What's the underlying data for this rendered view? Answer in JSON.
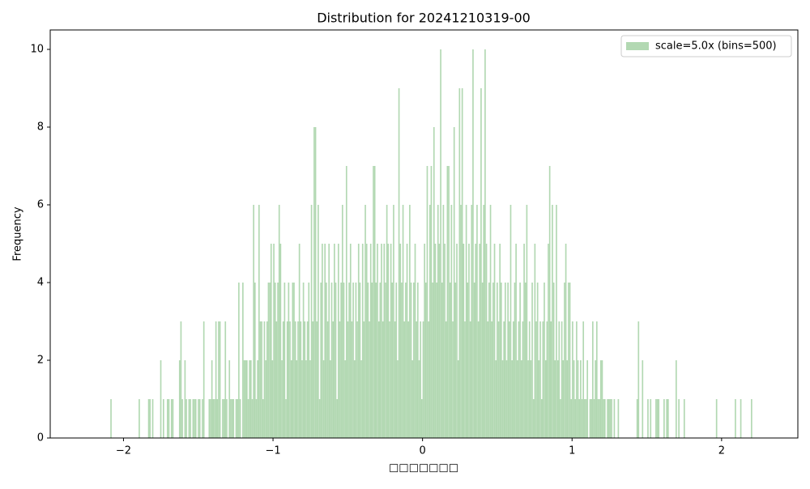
{
  "chart_data": {
    "type": "histogram",
    "title": "Distribution for 20241210319-00",
    "x_label": "□□□□□□□",
    "y_label": "Frequency",
    "legend_position": "upper right",
    "series": [
      {
        "name": "scale=5.0x (bins=500)",
        "color": "#b2d8b2",
        "bins": [
          -2.25,
          -2.241,
          -2.232,
          -2.223,
          -2.214,
          -2.205,
          -2.196,
          -2.187,
          -2.178,
          -2.169,
          -2.16,
          -2.151,
          -2.142,
          -2.133,
          -2.124,
          -2.115,
          -2.106,
          -2.097,
          -2.088,
          -2.079,
          -2.07,
          -2.061,
          -2.052,
          -2.043,
          -2.034,
          -2.025,
          -2.016,
          -2.007,
          -1.998,
          -1.989,
          -1.98,
          -1.971,
          -1.962,
          -1.953,
          -1.944,
          -1.935,
          -1.926,
          -1.917,
          -1.908,
          -1.899,
          -1.89,
          -1.881,
          -1.872,
          -1.863,
          -1.854,
          -1.845,
          -1.836,
          -1.827,
          -1.818,
          -1.809,
          -1.8,
          -1.791,
          -1.782,
          -1.773,
          -1.764,
          -1.755,
          -1.746,
          -1.737,
          -1.728,
          -1.719,
          -1.71,
          -1.701,
          -1.692,
          -1.683,
          -1.674,
          -1.665,
          -1.656,
          -1.647,
          -1.638,
          -1.629,
          -1.62,
          -1.611,
          -1.602,
          -1.593,
          -1.584,
          -1.575,
          -1.566,
          -1.557,
          -1.548,
          -1.539,
          -1.53,
          -1.521,
          -1.512,
          -1.503,
          -1.494,
          -1.485,
          -1.476,
          -1.467,
          -1.458,
          -1.449,
          -1.44,
          -1.431,
          -1.422,
          -1.413,
          -1.404,
          -1.395,
          -1.386,
          -1.377,
          -1.368,
          -1.359,
          -1.35,
          -1.341,
          -1.332,
          -1.323,
          -1.314,
          -1.305,
          -1.296,
          -1.287,
          -1.278,
          -1.269,
          -1.26,
          -1.251,
          -1.242,
          -1.233,
          -1.224,
          -1.215,
          -1.206,
          -1.197,
          -1.188,
          -1.179,
          -1.17,
          -1.161,
          -1.152,
          -1.143,
          -1.134,
          -1.125,
          -1.116,
          -1.107,
          -1.098,
          -1.089,
          -1.08,
          -1.071,
          -1.062,
          -1.053,
          -1.044,
          -1.035,
          -1.026,
          -1.017,
          -1.008,
          -0.999,
          -0.99,
          -0.981,
          -0.972,
          -0.963,
          -0.954,
          -0.945,
          -0.936,
          -0.927,
          -0.918,
          -0.909,
          -0.9,
          -0.891,
          -0.882,
          -0.873,
          -0.864,
          -0.855,
          -0.846,
          -0.837,
          -0.828,
          -0.819,
          -0.81,
          -0.801,
          -0.792,
          -0.783,
          -0.774,
          -0.765,
          -0.756,
          -0.747,
          -0.738,
          -0.729,
          -0.72,
          -0.711,
          -0.702,
          -0.693,
          -0.684,
          -0.675,
          -0.666,
          -0.657,
          -0.648,
          -0.639,
          -0.63,
          -0.621,
          -0.612,
          -0.603,
          -0.594,
          -0.585,
          -0.576,
          -0.567,
          -0.558,
          -0.549,
          -0.54,
          -0.531,
          -0.522,
          -0.513,
          -0.504,
          -0.495,
          -0.486,
          -0.477,
          -0.468,
          -0.459,
          -0.45,
          -0.441,
          -0.432,
          -0.423,
          -0.414,
          -0.405,
          -0.396,
          -0.387,
          -0.378,
          -0.369,
          -0.36,
          -0.351,
          -0.342,
          -0.333,
          -0.324,
          -0.315,
          -0.306,
          -0.297,
          -0.288,
          -0.279,
          -0.27,
          -0.261,
          -0.252,
          -0.243,
          -0.234,
          -0.225,
          -0.216,
          -0.207,
          -0.198,
          -0.189,
          -0.18,
          -0.171,
          -0.162,
          -0.153,
          -0.144,
          -0.135,
          -0.126,
          -0.117,
          -0.108,
          -0.099,
          -0.09,
          -0.081,
          -0.072,
          -0.063,
          -0.054,
          -0.045,
          -0.036,
          -0.027,
          -0.018,
          -0.009,
          0,
          0.009,
          0.018,
          0.027,
          0.036,
          0.045,
          0.054,
          0.063,
          0.072,
          0.081,
          0.09,
          0.099,
          0.108,
          0.117,
          0.126,
          0.135,
          0.144,
          0.153,
          0.162,
          0.171,
          0.18,
          0.189,
          0.198,
          0.207,
          0.216,
          0.225,
          0.234,
          0.243,
          0.252,
          0.261,
          0.27,
          0.279,
          0.288,
          0.297,
          0.306,
          0.315,
          0.324,
          0.333,
          0.342,
          0.351,
          0.36,
          0.369,
          0.378,
          0.387,
          0.396,
          0.405,
          0.414,
          0.423,
          0.432,
          0.441,
          0.45,
          0.459,
          0.468,
          0.477,
          0.486,
          0.495,
          0.504,
          0.513,
          0.522,
          0.531,
          0.54,
          0.549,
          0.558,
          0.567,
          0.576,
          0.585,
          0.594,
          0.603,
          0.612,
          0.621,
          0.63,
          0.639,
          0.648,
          0.657,
          0.666,
          0.675,
          0.684,
          0.693,
          0.702,
          0.711,
          0.72,
          0.729,
          0.738,
          0.747,
          0.756,
          0.765,
          0.774,
          0.783,
          0.792,
          0.801,
          0.81,
          0.819,
          0.828,
          0.837,
          0.846,
          0.855,
          0.864,
          0.873,
          0.882,
          0.891,
          0.9,
          0.909,
          0.918,
          0.927,
          0.936,
          0.945,
          0.954,
          0.963,
          0.972,
          0.981,
          0.99,
          0.999,
          1.008,
          1.017,
          1.026,
          1.035,
          1.044,
          1.053,
          1.062,
          1.071,
          1.08,
          1.089,
          1.098,
          1.107,
          1.116,
          1.125,
          1.134,
          1.143,
          1.152,
          1.161,
          1.17,
          1.179,
          1.188,
          1.197,
          1.206,
          1.215,
          1.224,
          1.233,
          1.242,
          1.251,
          1.26,
          1.269,
          1.278,
          1.287,
          1.296,
          1.305,
          1.314,
          1.323,
          1.332,
          1.341,
          1.35,
          1.359,
          1.368,
          1.377,
          1.386,
          1.395,
          1.404,
          1.413,
          1.422,
          1.431,
          1.44,
          1.449,
          1.458,
          1.467,
          1.476,
          1.485,
          1.494,
          1.503,
          1.512,
          1.521,
          1.53,
          1.539,
          1.548,
          1.557,
          1.566,
          1.575,
          1.584,
          1.593,
          1.602,
          1.611,
          1.62,
          1.629,
          1.638,
          1.647,
          1.656,
          1.665,
          1.674,
          1.683,
          1.692,
          1.701,
          1.71,
          1.719,
          1.728,
          1.737,
          1.746,
          1.755,
          1.764,
          1.773,
          1.782,
          1.791,
          1.8,
          1.809,
          1.818,
          1.827,
          1.836,
          1.845,
          1.854,
          1.863,
          1.872,
          1.881,
          1.89,
          1.899,
          1.908,
          1.917,
          1.926,
          1.935,
          1.944,
          1.953,
          1.962,
          1.971,
          1.98,
          1.989,
          1.998,
          2.007,
          2.016,
          2.025,
          2.034,
          2.043,
          2.052,
          2.061,
          2.07,
          2.079,
          2.088,
          2.097,
          2.106,
          2.115,
          2.124,
          2.133,
          2.142,
          2.151,
          2.16,
          2.169,
          2.178,
          2.187,
          2.196,
          2.205,
          2.214,
          2.223,
          2.232,
          2.241,
          2.25
        ],
        "values": [
          0,
          0,
          0,
          0,
          0,
          0,
          0,
          0,
          0,
          0,
          0,
          0,
          0,
          0,
          0,
          0,
          0,
          0,
          1,
          0,
          0,
          0,
          0,
          0,
          0,
          0,
          0,
          0,
          0,
          0,
          0,
          0,
          0,
          0,
          0,
          0,
          0,
          0,
          0,
          1,
          0,
          0,
          0,
          0,
          0,
          0,
          1,
          1,
          0,
          1,
          0,
          0,
          0,
          0,
          0,
          2,
          0,
          1,
          0,
          0,
          1,
          1,
          0,
          1,
          1,
          0,
          0,
          0,
          0,
          2,
          3,
          1,
          0,
          2,
          1,
          0,
          1,
          1,
          0,
          1,
          1,
          1,
          0,
          1,
          1,
          0,
          1,
          3,
          0,
          0,
          0,
          1,
          1,
          2,
          1,
          1,
          3,
          1,
          3,
          3,
          0,
          1,
          1,
          3,
          1,
          0,
          2,
          1,
          1,
          1,
          0,
          1,
          1,
          4,
          1,
          0,
          4,
          2,
          2,
          2,
          1,
          2,
          2,
          1,
          6,
          4,
          1,
          2,
          6,
          3,
          3,
          1,
          3,
          2,
          3,
          4,
          4,
          5,
          2,
          5,
          4,
          3,
          4,
          6,
          5,
          2,
          3,
          4,
          1,
          3,
          4,
          3,
          2,
          4,
          4,
          3,
          2,
          3,
          5,
          3,
          2,
          4,
          3,
          2,
          3,
          4,
          2,
          6,
          3,
          8,
          8,
          3,
          6,
          1,
          4,
          5,
          2,
          5,
          4,
          3,
          5,
          2,
          4,
          3,
          5,
          4,
          1,
          5,
          3,
          4,
          6,
          4,
          2,
          7,
          3,
          4,
          5,
          3,
          4,
          2,
          4,
          3,
          5,
          4,
          2,
          5,
          3,
          6,
          5,
          4,
          3,
          5,
          4,
          7,
          7,
          4,
          5,
          3,
          4,
          5,
          3,
          5,
          4,
          6,
          5,
          3,
          5,
          4,
          6,
          3,
          4,
          2,
          9,
          5,
          4,
          6,
          3,
          4,
          5,
          3,
          6,
          4,
          2,
          4,
          5,
          3,
          4,
          2,
          3,
          1,
          3,
          5,
          4,
          7,
          3,
          6,
          7,
          4,
          8,
          5,
          4,
          6,
          5,
          10,
          4,
          6,
          5,
          3,
          7,
          7,
          4,
          6,
          3,
          8,
          4,
          5,
          2,
          9,
          6,
          9,
          5,
          3,
          6,
          4,
          5,
          3,
          6,
          10,
          4,
          5,
          6,
          3,
          5,
          9,
          4,
          6,
          10,
          5,
          3,
          4,
          6,
          3,
          4,
          5,
          2,
          4,
          3,
          5,
          4,
          2,
          3,
          4,
          2,
          4,
          3,
          6,
          2,
          3,
          4,
          5,
          2,
          3,
          4,
          2,
          3,
          5,
          4,
          6,
          2,
          3,
          2,
          4,
          1,
          5,
          3,
          4,
          2,
          3,
          1,
          3,
          4,
          2,
          3,
          5,
          7,
          3,
          6,
          4,
          2,
          6,
          2,
          3,
          1,
          3,
          2,
          4,
          5,
          2,
          4,
          4,
          1,
          3,
          2,
          1,
          3,
          2,
          1,
          2,
          1,
          3,
          1,
          1,
          2,
          0,
          1,
          1,
          3,
          1,
          2,
          3,
          1,
          1,
          2,
          2,
          1,
          1,
          0,
          1,
          1,
          1,
          1,
          0,
          1,
          0,
          0,
          1,
          0,
          0,
          0,
          0,
          0,
          0,
          0,
          0,
          0,
          0,
          0,
          0,
          0,
          1,
          3,
          0,
          0,
          2,
          0,
          0,
          0,
          1,
          0,
          1,
          0,
          0,
          0,
          1,
          1,
          1,
          0,
          0,
          0,
          1,
          0,
          1,
          1,
          0,
          0,
          0,
          0,
          0,
          2,
          0,
          1,
          0,
          0,
          0,
          1,
          0,
          0,
          0,
          0,
          0,
          0,
          0,
          0,
          0,
          0,
          0,
          0,
          0,
          0,
          0,
          0,
          0,
          0,
          0,
          0,
          0,
          0,
          0,
          1,
          0,
          0,
          0,
          0,
          0,
          0,
          0,
          0,
          0,
          0,
          0,
          0,
          0,
          1,
          0,
          0,
          0,
          1,
          0,
          0,
          0,
          0,
          0,
          0,
          0,
          1,
          0,
          0,
          0,
          0,
          0
        ]
      }
    ],
    "xlim": [
      -2.49,
      2.51
    ],
    "ylim": [
      0,
      10.5
    ],
    "xticks": [
      {
        "value": -2,
        "label": "−2"
      },
      {
        "value": -1,
        "label": "−1"
      },
      0,
      1,
      2
    ],
    "yticks": [
      0,
      2,
      4,
      6,
      8,
      10
    ]
  }
}
